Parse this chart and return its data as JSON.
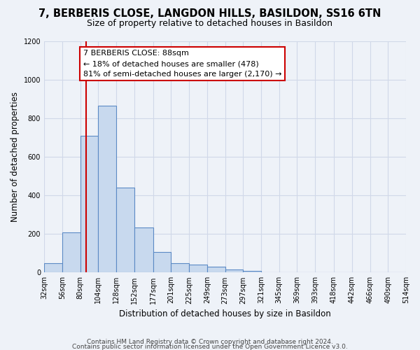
{
  "title": "7, BERBERIS CLOSE, LANGDON HILLS, BASILDON, SS16 6TN",
  "subtitle": "Size of property relative to detached houses in Basildon",
  "xlabel": "Distribution of detached houses by size in Basildon",
  "ylabel": "Number of detached properties",
  "bin_labels": [
    "32sqm",
    "56sqm",
    "80sqm",
    "104sqm",
    "128sqm",
    "152sqm",
    "177sqm",
    "201sqm",
    "225sqm",
    "249sqm",
    "273sqm",
    "297sqm",
    "321sqm",
    "345sqm",
    "369sqm",
    "393sqm",
    "418sqm",
    "442sqm",
    "466sqm",
    "490sqm",
    "514sqm"
  ],
  "bin_edges": [
    32,
    56,
    80,
    104,
    128,
    152,
    177,
    201,
    225,
    249,
    273,
    297,
    321,
    345,
    369,
    393,
    418,
    442,
    466,
    490,
    514
  ],
  "bar_heights": [
    50,
    210,
    710,
    865,
    440,
    235,
    105,
    50,
    40,
    30,
    15,
    10,
    0,
    0,
    0,
    0,
    0,
    0,
    0,
    0
  ],
  "bar_color": "#c8d9ee",
  "bar_edge_color": "#5b8ac5",
  "property_size": 88,
  "vline_color": "#cc0000",
  "annotation_line1": "7 BERBERIS CLOSE: 88sqm",
  "annotation_line2": "← 18% of detached houses are smaller (478)",
  "annotation_line3": "81% of semi-detached houses are larger (2,170) →",
  "annotation_box_edge": "#cc0000",
  "annotation_box_face": "#ffffff",
  "ylim": [
    0,
    1200
  ],
  "yticks": [
    0,
    200,
    400,
    600,
    800,
    1000,
    1200
  ],
  "grid_color": "#d0d8e8",
  "bg_color": "#eef2f8",
  "footer_line1": "Contains HM Land Registry data © Crown copyright and database right 2024.",
  "footer_line2": "Contains public sector information licensed under the Open Government Licence v3.0."
}
